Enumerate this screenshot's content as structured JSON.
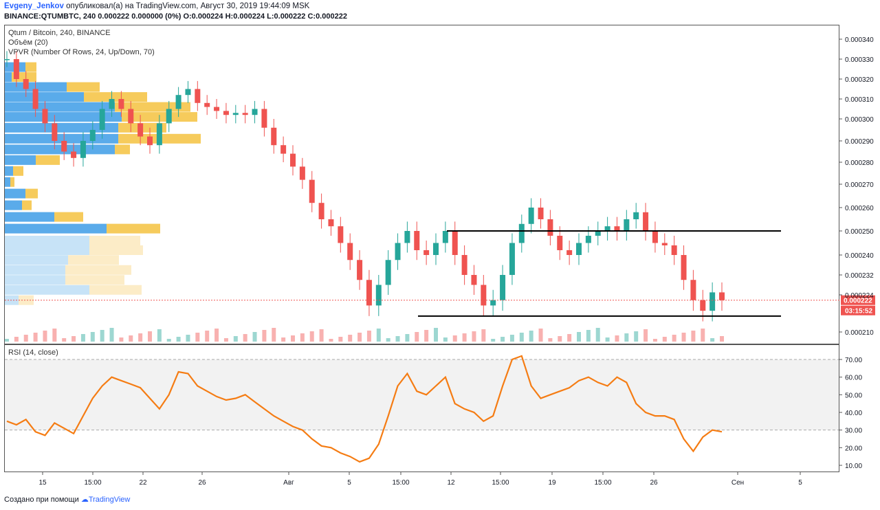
{
  "header": {
    "author": "Evgeny_Jenkov",
    "published": " опубликовал(а) на TradingView.com, Август 30, 2019 19:44:09 MSK",
    "symbol_line": "BINANCE:QTUMBTC, 240  0.000222 0.000000 (0%) O:0.000224 H:0.000224 L:0.000222 C:0.000222"
  },
  "legend": {
    "title": "Qtum / Bitcoin, 240, BINANCE",
    "volume": "Объём (20)",
    "vpvr": "VPVR (Number Of Rows, 24, Up/Down, 70)",
    "rsi": "RSI (14, close)"
  },
  "footer": {
    "prefix": "Создано при помощи",
    "brand": "TradingView"
  },
  "colors": {
    "up": "#26a69a",
    "down": "#ef5350",
    "vpvr_up": "#5aabea",
    "vpvr_down": "#f6cb5c",
    "vpvr_up_light": "#c7e3f7",
    "vpvr_down_light": "#fcecc7",
    "rsi_line": "#f57c13",
    "price_label": "#ef5350"
  },
  "chart_data": {
    "type": "candlestick",
    "x_ticks": [
      "15",
      "15:00",
      "22",
      "26",
      "Авг",
      "5",
      "15:00",
      "12",
      "15:00",
      "19",
      "15:00",
      "26",
      "Сен",
      "5"
    ],
    "price_ticks": [
      "0.000340",
      "0.000330",
      "0.000320",
      "0.000310",
      "0.000300",
      "0.000290",
      "0.000280",
      "0.000270",
      "0.000260",
      "0.000250",
      "0.000240",
      "0.000232",
      "0.000224",
      "0.000210"
    ],
    "price_values": [
      0.00034,
      0.00033,
      0.00032,
      0.00031,
      0.0003,
      0.00029,
      0.00028,
      0.00027,
      0.00026,
      0.00025,
      0.00024,
      0.000232,
      0.000224,
      0.00021
    ],
    "current_price": "0.000222",
    "countdown": "03:15:52",
    "support": 0.000216,
    "resistance": 0.00025,
    "close_series": [
      0.00033,
      0.00032,
      0.000315,
      0.000305,
      0.000298,
      0.00029,
      0.000285,
      0.000282,
      0.00029,
      0.000295,
      0.000305,
      0.00031,
      0.000305,
      0.000298,
      0.000292,
      0.000288,
      0.000298,
      0.000305,
      0.000312,
      0.000315,
      0.000308,
      0.000306,
      0.000304,
      0.000302,
      0.000303,
      0.000302,
      0.000305,
      0.000296,
      0.000288,
      0.000284,
      0.000278,
      0.000272,
      0.000262,
      0.000255,
      0.000252,
      0.000245,
      0.000238,
      0.00023,
      0.00022,
      0.000228,
      0.000238,
      0.000245,
      0.00025,
      0.000242,
      0.00024,
      0.000245,
      0.00025,
      0.00024,
      0.000232,
      0.000228,
      0.00022,
      0.000222,
      0.000232,
      0.000245,
      0.000253,
      0.00026,
      0.000255,
      0.000248,
      0.000242,
      0.00024,
      0.000245,
      0.000248,
      0.00025,
      0.000252,
      0.00025,
      0.000255,
      0.000258,
      0.00025,
      0.000245,
      0.000244,
      0.00024,
      0.00023,
      0.000222,
      0.000218,
      0.000225,
      0.000222
    ],
    "rsi": {
      "title": "RSI (14, close)",
      "ticks": [
        "70.00",
        "60.00",
        "50.00",
        "40.00",
        "30.00",
        "20.00",
        "10.00"
      ],
      "tick_values": [
        70,
        60,
        50,
        40,
        30,
        20,
        10
      ],
      "band": [
        30,
        70
      ],
      "values": [
        35,
        33,
        36,
        29,
        27,
        34,
        31,
        28,
        38,
        48,
        55,
        60,
        58,
        56,
        54,
        48,
        42,
        50,
        63,
        62,
        55,
        52,
        49,
        47,
        48,
        50,
        46,
        42,
        38,
        35,
        32,
        30,
        25,
        21,
        20,
        17,
        15,
        12,
        14,
        22,
        38,
        55,
        62,
        52,
        50,
        55,
        60,
        45,
        42,
        40,
        35,
        38,
        55,
        70,
        72,
        55,
        48,
        50,
        52,
        54,
        58,
        60,
        57,
        55,
        60,
        57,
        45,
        40,
        38,
        38,
        36,
        25,
        18,
        26,
        30,
        29
      ]
    }
  }
}
